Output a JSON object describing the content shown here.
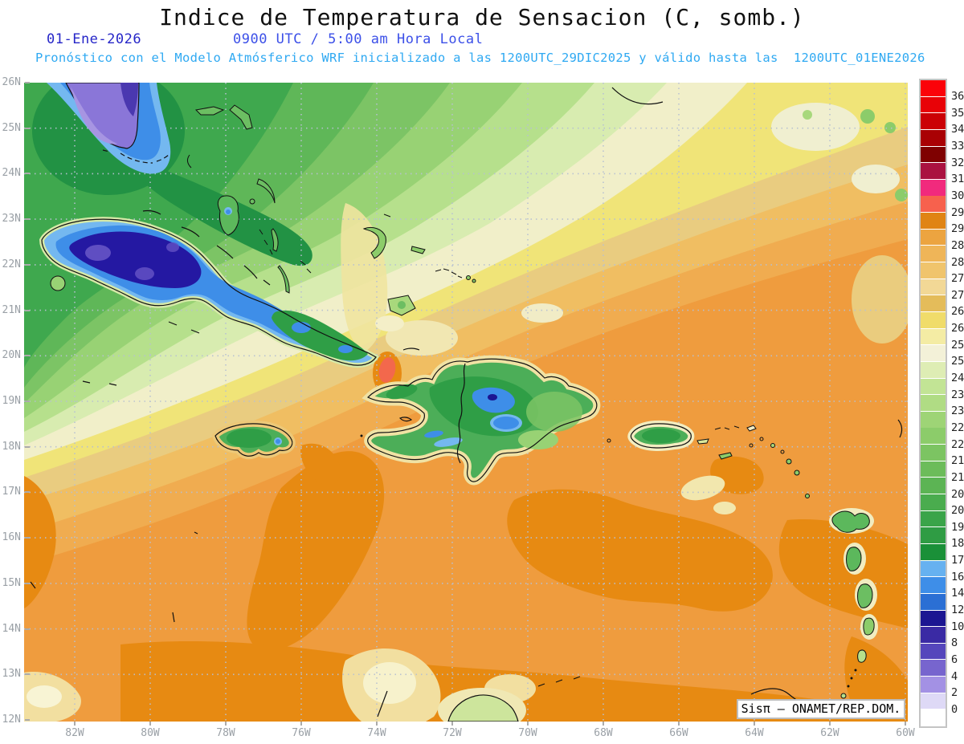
{
  "header": {
    "title": "Indice de Temperatura de Sensacion (C, somb.)",
    "date": "01-Ene-2026",
    "time": "0900 UTC / 5:00 am Hora Local",
    "model_line": "Pronóstico con el Modelo Atmósferico WRF inicializado a las 1200UTC_29DIC2025 y válido hasta las  1200UTC_01ENE2026",
    "colors": {
      "title": "#111111",
      "date": "#2626C8",
      "time": "#3C50E8",
      "model_line": "#2FA9F2"
    }
  },
  "map": {
    "lat_labels": [
      "26N",
      "25N",
      "24N",
      "23N",
      "22N",
      "21N",
      "20N",
      "19N",
      "18N",
      "17N",
      "16N",
      "15N",
      "14N",
      "13N",
      "12N"
    ],
    "lon_labels": [
      "82W",
      "80W",
      "78W",
      "76W",
      "74W",
      "72W",
      "70W",
      "68W",
      "66W",
      "64W",
      "62W",
      "60W"
    ],
    "gridline_color": "#b7c0d2",
    "axis_label_color": "#9aa0a6"
  },
  "colorbar": {
    "border_color": "#c4c4c4",
    "label_color": "#222222",
    "units": "C",
    "cells": [
      {
        "color": "#FB0209",
        "label": "36"
      },
      {
        "color": "#E80207",
        "label": "35"
      },
      {
        "color": "#CB0106",
        "label": "34"
      },
      {
        "color": "#A90104",
        "label": "33"
      },
      {
        "color": "#7F0101",
        "label": "32"
      },
      {
        "color": "#AA1240",
        "label": "31.5"
      },
      {
        "color": "#F12A7D",
        "label": "30.7"
      },
      {
        "color": "#F7614D",
        "label": "29.7"
      },
      {
        "color": "#E08414",
        "label": "29"
      },
      {
        "color": "#ECA440",
        "label": "28.5"
      },
      {
        "color": "#EFB558",
        "label": "28"
      },
      {
        "color": "#F0C46C",
        "label": "27.5"
      },
      {
        "color": "#F2D896",
        "label": "27"
      },
      {
        "color": "#E4BC5A",
        "label": "26.5"
      },
      {
        "color": "#F0DC6A",
        "label": "26"
      },
      {
        "color": "#F4ECA4",
        "label": "25.5"
      },
      {
        "color": "#F3F1D8",
        "label": "25"
      },
      {
        "color": "#DEEDB4",
        "label": "24"
      },
      {
        "color": "#C2E495",
        "label": "23.5"
      },
      {
        "color": "#B0DC84",
        "label": "23"
      },
      {
        "color": "#9ED476",
        "label": "22.5"
      },
      {
        "color": "#8CCC6A",
        "label": "22"
      },
      {
        "color": "#7CC462",
        "label": "21.5"
      },
      {
        "color": "#6CBC5A",
        "label": "21"
      },
      {
        "color": "#5CB454",
        "label": "20.5"
      },
      {
        "color": "#4AAC4E",
        "label": "20"
      },
      {
        "color": "#3AA449",
        "label": "19"
      },
      {
        "color": "#2F9C44",
        "label": "18"
      },
      {
        "color": "#1A9038",
        "label": "17"
      },
      {
        "color": "#66B1F0",
        "label": "16"
      },
      {
        "color": "#3E8EE8",
        "label": "14"
      },
      {
        "color": "#2B6FD4",
        "label": "12"
      },
      {
        "color": "#1C1692",
        "label": "10"
      },
      {
        "color": "#3A2AA4",
        "label": "8"
      },
      {
        "color": "#5546BC",
        "label": "6"
      },
      {
        "color": "#7765CE",
        "label": "4"
      },
      {
        "color": "#A391E4",
        "label": "2"
      },
      {
        "color": "#DED9F6",
        "label": "0"
      },
      {
        "color": "#FFFFFF",
        "label": null
      }
    ]
  },
  "attribution": {
    "brand": "Sisπ",
    "rest": " – ONAMET/REP.DOM."
  }
}
